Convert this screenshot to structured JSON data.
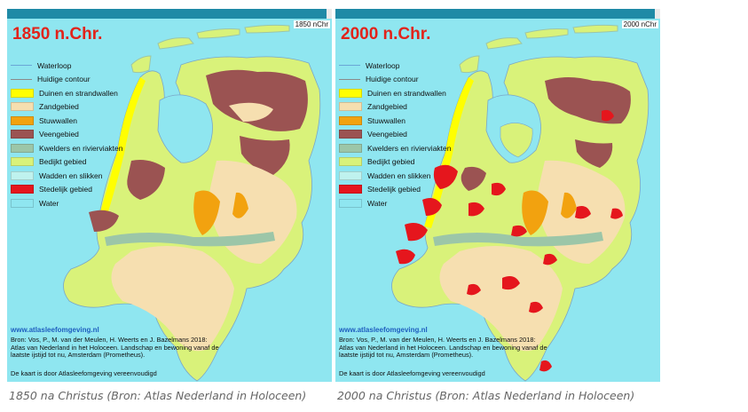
{
  "maps": [
    {
      "year_title": "1850 n.Chr.",
      "slider_label": "1850 nChr",
      "site": "www.atlasleefomgeving.nl",
      "source": "Bron: Vos, P., M. van der Meulen, H. Weerts en J. Bazelmans 2018: Atlas van Nederland in het Holoceen. Landschap en bewoning vanaf de laatste ijstijd tot nu, Amsterdam (Prometheus).",
      "disclaimer": "De kaart is door Atlasleefomgeving vereenvoudigd",
      "caption": "1850 na Christus (Bron: Atlas Nederland in Holoceen)"
    },
    {
      "year_title": "2000 n.Chr.",
      "slider_label": "2000 nChr",
      "site": "www.atlasleefomgeving.nl",
      "source": "Bron: Vos, P., M. van der Meulen, H. Weerts en J. Bazelmans 2018: Atlas van Nederland in het Holoceen. Landschap en bewoning vanaf de laatste ijstijd tot nu, Amsterdam (Prometheus).",
      "disclaimer": "De kaart is door Atlasleefomgeving vereenvoudigd",
      "caption": "2000 na Christus (Bron: Atlas Nederland in Holoceen)"
    }
  ],
  "legend": [
    {
      "label": "Waterloop",
      "type": "line",
      "color": "#6aa7d6"
    },
    {
      "label": "Huidige contour",
      "type": "line",
      "color": "#8a8a8a"
    },
    {
      "label": "Duinen en strandwallen",
      "type": "box",
      "color": "#ffff00"
    },
    {
      "label": "Zandgebied",
      "type": "box",
      "color": "#f6dfb0"
    },
    {
      "label": "Stuwwallen",
      "type": "box",
      "color": "#f2a20f"
    },
    {
      "label": "Veengebied",
      "type": "box",
      "color": "#9b5352"
    },
    {
      "label": "Kwelders en rivierviakten",
      "type": "box",
      "color": "#9cc6a8"
    },
    {
      "label": "Bedijkt gebied",
      "type": "box",
      "color": "#d9f27a"
    },
    {
      "label": "Wadden en slikken",
      "type": "box",
      "color": "#bff2ee"
    },
    {
      "label": "Stedelijk gebied",
      "type": "box",
      "color": "#e5161d"
    },
    {
      "label": "Water",
      "type": "box",
      "color": "#8fe6f0"
    }
  ],
  "colors": {
    "sea": "#8fe6f0",
    "dunes": "#ffff00",
    "sand": "#f6dfb0",
    "push_moraine": "#f2a20f",
    "peat": "#9b5352",
    "floodplain": "#9cc6a8",
    "polder": "#d9f27a",
    "urban": "#e5161d",
    "title_red": "#e2231a",
    "slider_teal": "#1f8aa6"
  }
}
